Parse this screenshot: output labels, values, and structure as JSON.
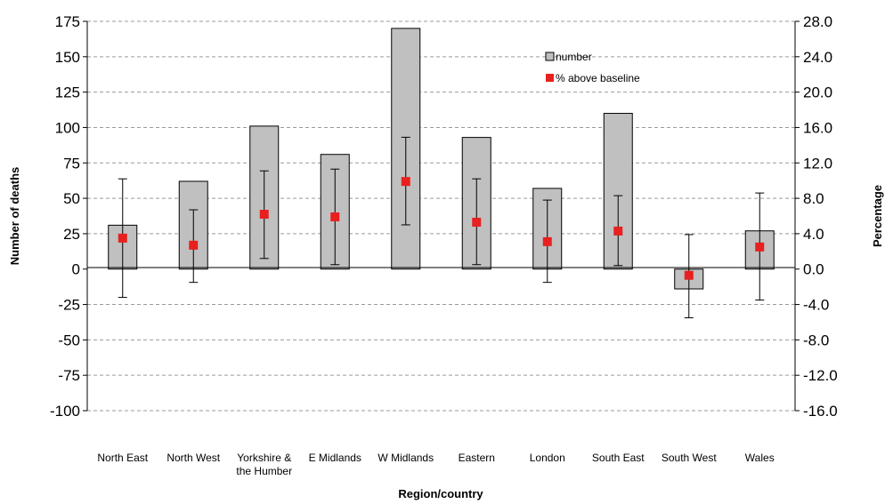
{
  "chart_data": {
    "type": "bar",
    "categories": [
      "North East",
      "North West",
      "Yorkshire &\nthe Humber",
      "E Midlands",
      "W Midlands",
      "Eastern",
      "London",
      "South East",
      "South West",
      "Wales"
    ],
    "xlabel": "Region/country",
    "ylabel": "Number of deaths",
    "y2label": "Percentage",
    "ylim": [
      -100,
      175
    ],
    "y2lim": [
      -16,
      28
    ],
    "yticks": [
      "175",
      "150",
      "125",
      "100",
      "75",
      "50",
      "25",
      "0",
      "-25",
      "-50",
      "-75",
      "-100"
    ],
    "y2ticks": [
      "28.0",
      "24.0",
      "20.0",
      "16.0",
      "12.0",
      "8.0",
      "4.0",
      "0.0",
      "-4.0",
      "-8.0",
      "-12.0",
      "-16.0"
    ],
    "grid": true,
    "legend_position": "top-right",
    "series": [
      {
        "name": "number",
        "axis": "left",
        "type": "bar",
        "color": "#c0c0c0",
        "values": [
          31,
          62,
          101,
          81,
          170,
          93,
          57,
          110,
          -14,
          27
        ]
      },
      {
        "name": "% above baseline",
        "axis": "right",
        "type": "scatter",
        "color": "#e8201f",
        "values": [
          3.5,
          2.7,
          6.2,
          5.9,
          9.9,
          5.3,
          3.1,
          4.3,
          -0.7,
          2.5
        ],
        "error_low": [
          -3.2,
          -1.5,
          1.2,
          0.5,
          5.0,
          0.5,
          -1.5,
          0.4,
          -5.5,
          -3.5
        ],
        "error_high": [
          10.2,
          6.7,
          11.1,
          11.3,
          14.9,
          10.2,
          7.8,
          8.3,
          3.9,
          8.6
        ]
      }
    ]
  }
}
